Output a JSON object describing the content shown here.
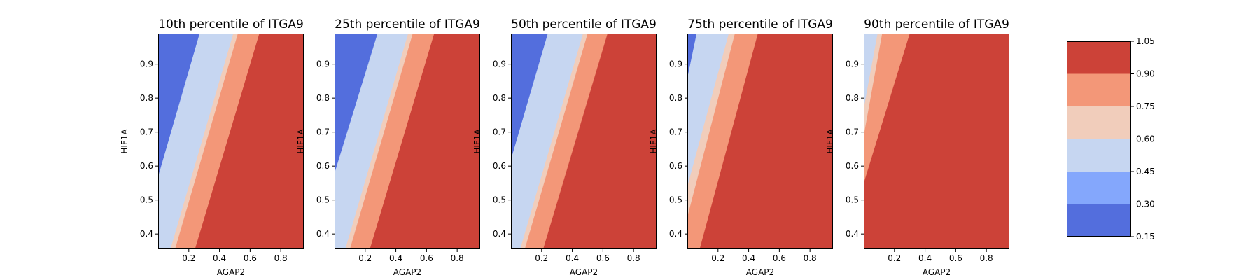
{
  "chart_data": {
    "type": "contour",
    "colormap": "coolwarm",
    "panels": [
      {
        "title": "10th percentile of ITGA9",
        "xlabel": "AGAP2",
        "ylabel": "HIF1A",
        "xlim": [
          0.0,
          0.95
        ],
        "ylim": [
          0.355,
          0.99
        ],
        "boundaries": [
          {
            "level": 0.45,
            "x_at_ylow": 0.0,
            "x_at_yhigh": 0.27,
            "y_at_xmin": 0.57
          },
          {
            "level": 0.6,
            "x_at_ylow": 0.08,
            "x_at_yhigh": 0.49
          },
          {
            "level": 0.75,
            "x_at_ylow": 0.11,
            "x_at_yhigh": 0.52
          },
          {
            "level": 0.9,
            "x_at_ylow": 0.24,
            "x_at_yhigh": 0.66
          }
        ]
      },
      {
        "title": "25th percentile of ITGA9",
        "xlabel": "AGAP2",
        "ylabel": "HIF1A",
        "xlim": [
          0.0,
          0.95
        ],
        "ylim": [
          0.355,
          0.99
        ],
        "boundaries": [
          {
            "level": 0.45,
            "x_at_ylow": 0.0,
            "x_at_yhigh": 0.28,
            "y_at_xmin": 0.58
          },
          {
            "level": 0.6,
            "x_at_ylow": 0.07,
            "x_at_yhigh": 0.48
          },
          {
            "level": 0.75,
            "x_at_ylow": 0.1,
            "x_at_yhigh": 0.51
          },
          {
            "level": 0.9,
            "x_at_ylow": 0.23,
            "x_at_yhigh": 0.65
          }
        ]
      },
      {
        "title": "50th percentile of ITGA9",
        "xlabel": "AGAP2",
        "ylabel": "HIF1A",
        "xlim": [
          0.0,
          0.95
        ],
        "ylim": [
          0.355,
          0.99
        ],
        "boundaries": [
          {
            "level": 0.45,
            "x_at_ylow": 0.0,
            "x_at_yhigh": 0.24,
            "y_at_xmin": 0.62
          },
          {
            "level": 0.6,
            "x_at_ylow": 0.06,
            "x_at_yhigh": 0.47
          },
          {
            "level": 0.75,
            "x_at_ylow": 0.09,
            "x_at_yhigh": 0.5
          },
          {
            "level": 0.9,
            "x_at_ylow": 0.21,
            "x_at_yhigh": 0.63
          }
        ]
      },
      {
        "title": "75th percentile of ITGA9",
        "xlabel": "AGAP2",
        "ylabel": "HIF1A",
        "xlim": [
          0.0,
          0.95
        ],
        "ylim": [
          0.355,
          0.99
        ],
        "boundaries": [
          {
            "level": 0.45,
            "x_at_ylow": 0.0,
            "x_at_yhigh": 0.06,
            "y_at_xmin": 0.86
          },
          {
            "level": 0.6,
            "x_at_ylow": 0.0,
            "x_at_yhigh": 0.27,
            "y_at_xmin": 0.54
          },
          {
            "level": 0.75,
            "x_at_ylow": 0.0,
            "x_at_yhigh": 0.31,
            "y_at_xmin": 0.45
          },
          {
            "level": 0.9,
            "x_at_ylow": 0.08,
            "x_at_yhigh": 0.46
          }
        ]
      },
      {
        "title": "90th percentile of ITGA9",
        "xlabel": "AGAP2",
        "ylabel": "HIF1A",
        "xlim": [
          0.0,
          0.95
        ],
        "ylim": [
          0.355,
          0.99
        ],
        "boundaries": [
          {
            "level": 0.45,
            "x_at_ylow": 0.0,
            "x_at_yhigh": 0.0,
            "y_at_xmin": 0.99
          },
          {
            "level": 0.6,
            "x_at_ylow": 0.0,
            "x_at_yhigh": 0.09,
            "y_at_xmin": 0.77
          },
          {
            "level": 0.75,
            "x_at_ylow": 0.0,
            "x_at_yhigh": 0.12,
            "y_at_xmin": 0.69
          },
          {
            "level": 0.9,
            "x_at_ylow": 0.0,
            "x_at_yhigh": 0.3,
            "y_at_xmin": 0.55
          }
        ]
      }
    ],
    "xticks": [
      "0.2",
      "0.4",
      "0.6",
      "0.8"
    ],
    "xtick_values": [
      0.2,
      0.4,
      0.6,
      0.8
    ],
    "yticks": [
      "0.4",
      "0.5",
      "0.6",
      "0.7",
      "0.8",
      "0.9"
    ],
    "ytick_values": [
      0.4,
      0.5,
      0.6,
      0.7,
      0.8,
      0.9
    ],
    "colorbar": {
      "levels": [
        0.15,
        0.3,
        0.45,
        0.6,
        0.75,
        0.9,
        1.05
      ],
      "tick_labels": [
        "0.15",
        "0.30",
        "0.45",
        "0.60",
        "0.75",
        "0.90",
        "1.05"
      ],
      "colors": [
        "#536edd",
        "#84a7fc",
        "#c6d6f1",
        "#f1cdbb",
        "#f39778",
        "#cc4238"
      ]
    },
    "grid": false
  }
}
